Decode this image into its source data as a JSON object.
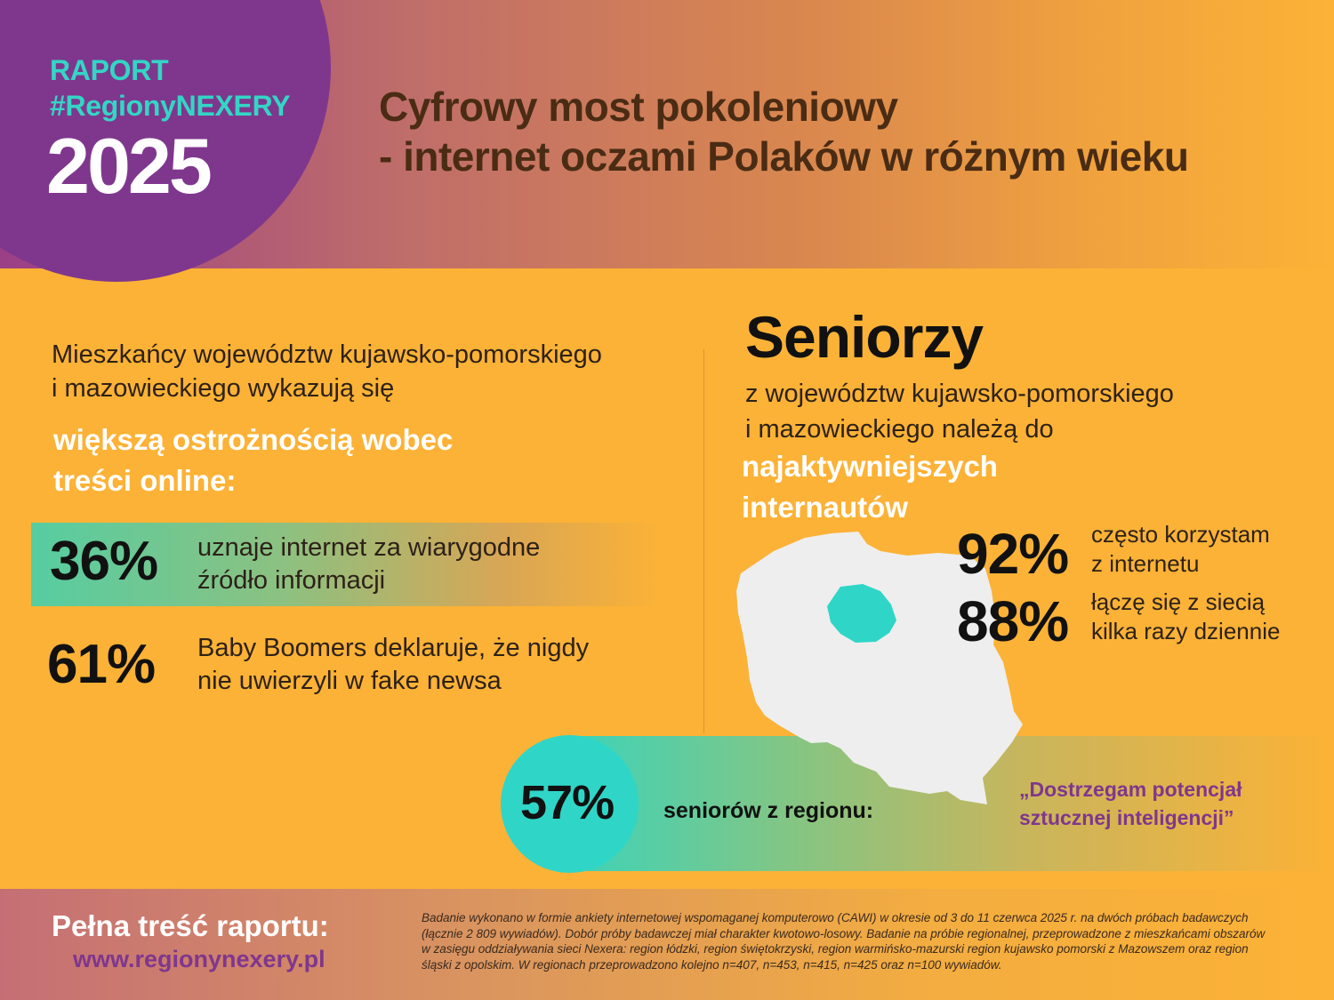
{
  "header": {
    "raport": "RAPORT",
    "hashtag": "#RegionyNEXERY",
    "year": "2025",
    "title_line1": "Cyfrowy most pokoleniowy",
    "title_line2": "- internet oczami Polaków w różnym wieku"
  },
  "left": {
    "intro_line1": "Mieszkańcy województw kujawsko-pomorskiego",
    "intro_line2": "i mazowieckiego wykazują się",
    "emphasis_line1": "większą ostrożnością wobec",
    "emphasis_line2": "treści online:",
    "stats": [
      {
        "value": "36%",
        "line1": "uznaje internet za wiarygodne",
        "line2": "źródło informacji"
      },
      {
        "value": "61%",
        "line1": "Baby Boomers deklaruje, że nigdy",
        "line2": "nie uwierzyli w fake newsa"
      }
    ]
  },
  "right": {
    "heading": "Seniorzy",
    "sub_line1": "z województw kujawsko-pomorskiego",
    "sub_line2": "i mazowieckiego należą do",
    "emphasis_line1": "najaktywniejszych",
    "emphasis_line2": "internautów",
    "stats": [
      {
        "value": "92%",
        "line1": "często korzystam",
        "line2": "z internetu"
      },
      {
        "value": "88%",
        "line1": "łączę się z siecią",
        "line2": "kilka razy dziennie"
      }
    ],
    "map_colors": {
      "country": "#eeeeee",
      "highlight_region": "#2fd6c7"
    }
  },
  "bottom_stat": {
    "value": "57%",
    "label": "seniorów z regionu:",
    "quote_line1": "„Dostrzegam potencjał",
    "quote_line2": "sztucznej inteligencji”"
  },
  "footer": {
    "label": "Pełna treść raportu:",
    "url": "www.regionynexery.pl",
    "note_lines": [
      "Badanie wykonano w formie ankiety internetowej wspomaganej komputerowo (CAWI) w okresie od 3 do 11 czerwca 2025 r. na dwóch próbach badawczych",
      "(łącznie 2 809 wywiadów). Dobór próby badawczej miał charakter kwotowo-losowy. Badanie na próbie regionalnej, przeprowadzone z mieszkańcami obszarów",
      "w zasięgu oddziaływania sieci Nexera: region łódzki, region świętokrzyski, region warmińsko-mazurski region kujawsko pomorski z Mazowszem oraz region",
      "śląski z opolskim. W regionach przeprowadzono kolejno n=407, n=453, n=415, n=425 oraz n=100 wywiadów."
    ]
  },
  "colors": {
    "background": "#fcb236",
    "purple": "#7f378d",
    "teal": "#33d6c5",
    "title_brown": "#4a2c14"
  }
}
